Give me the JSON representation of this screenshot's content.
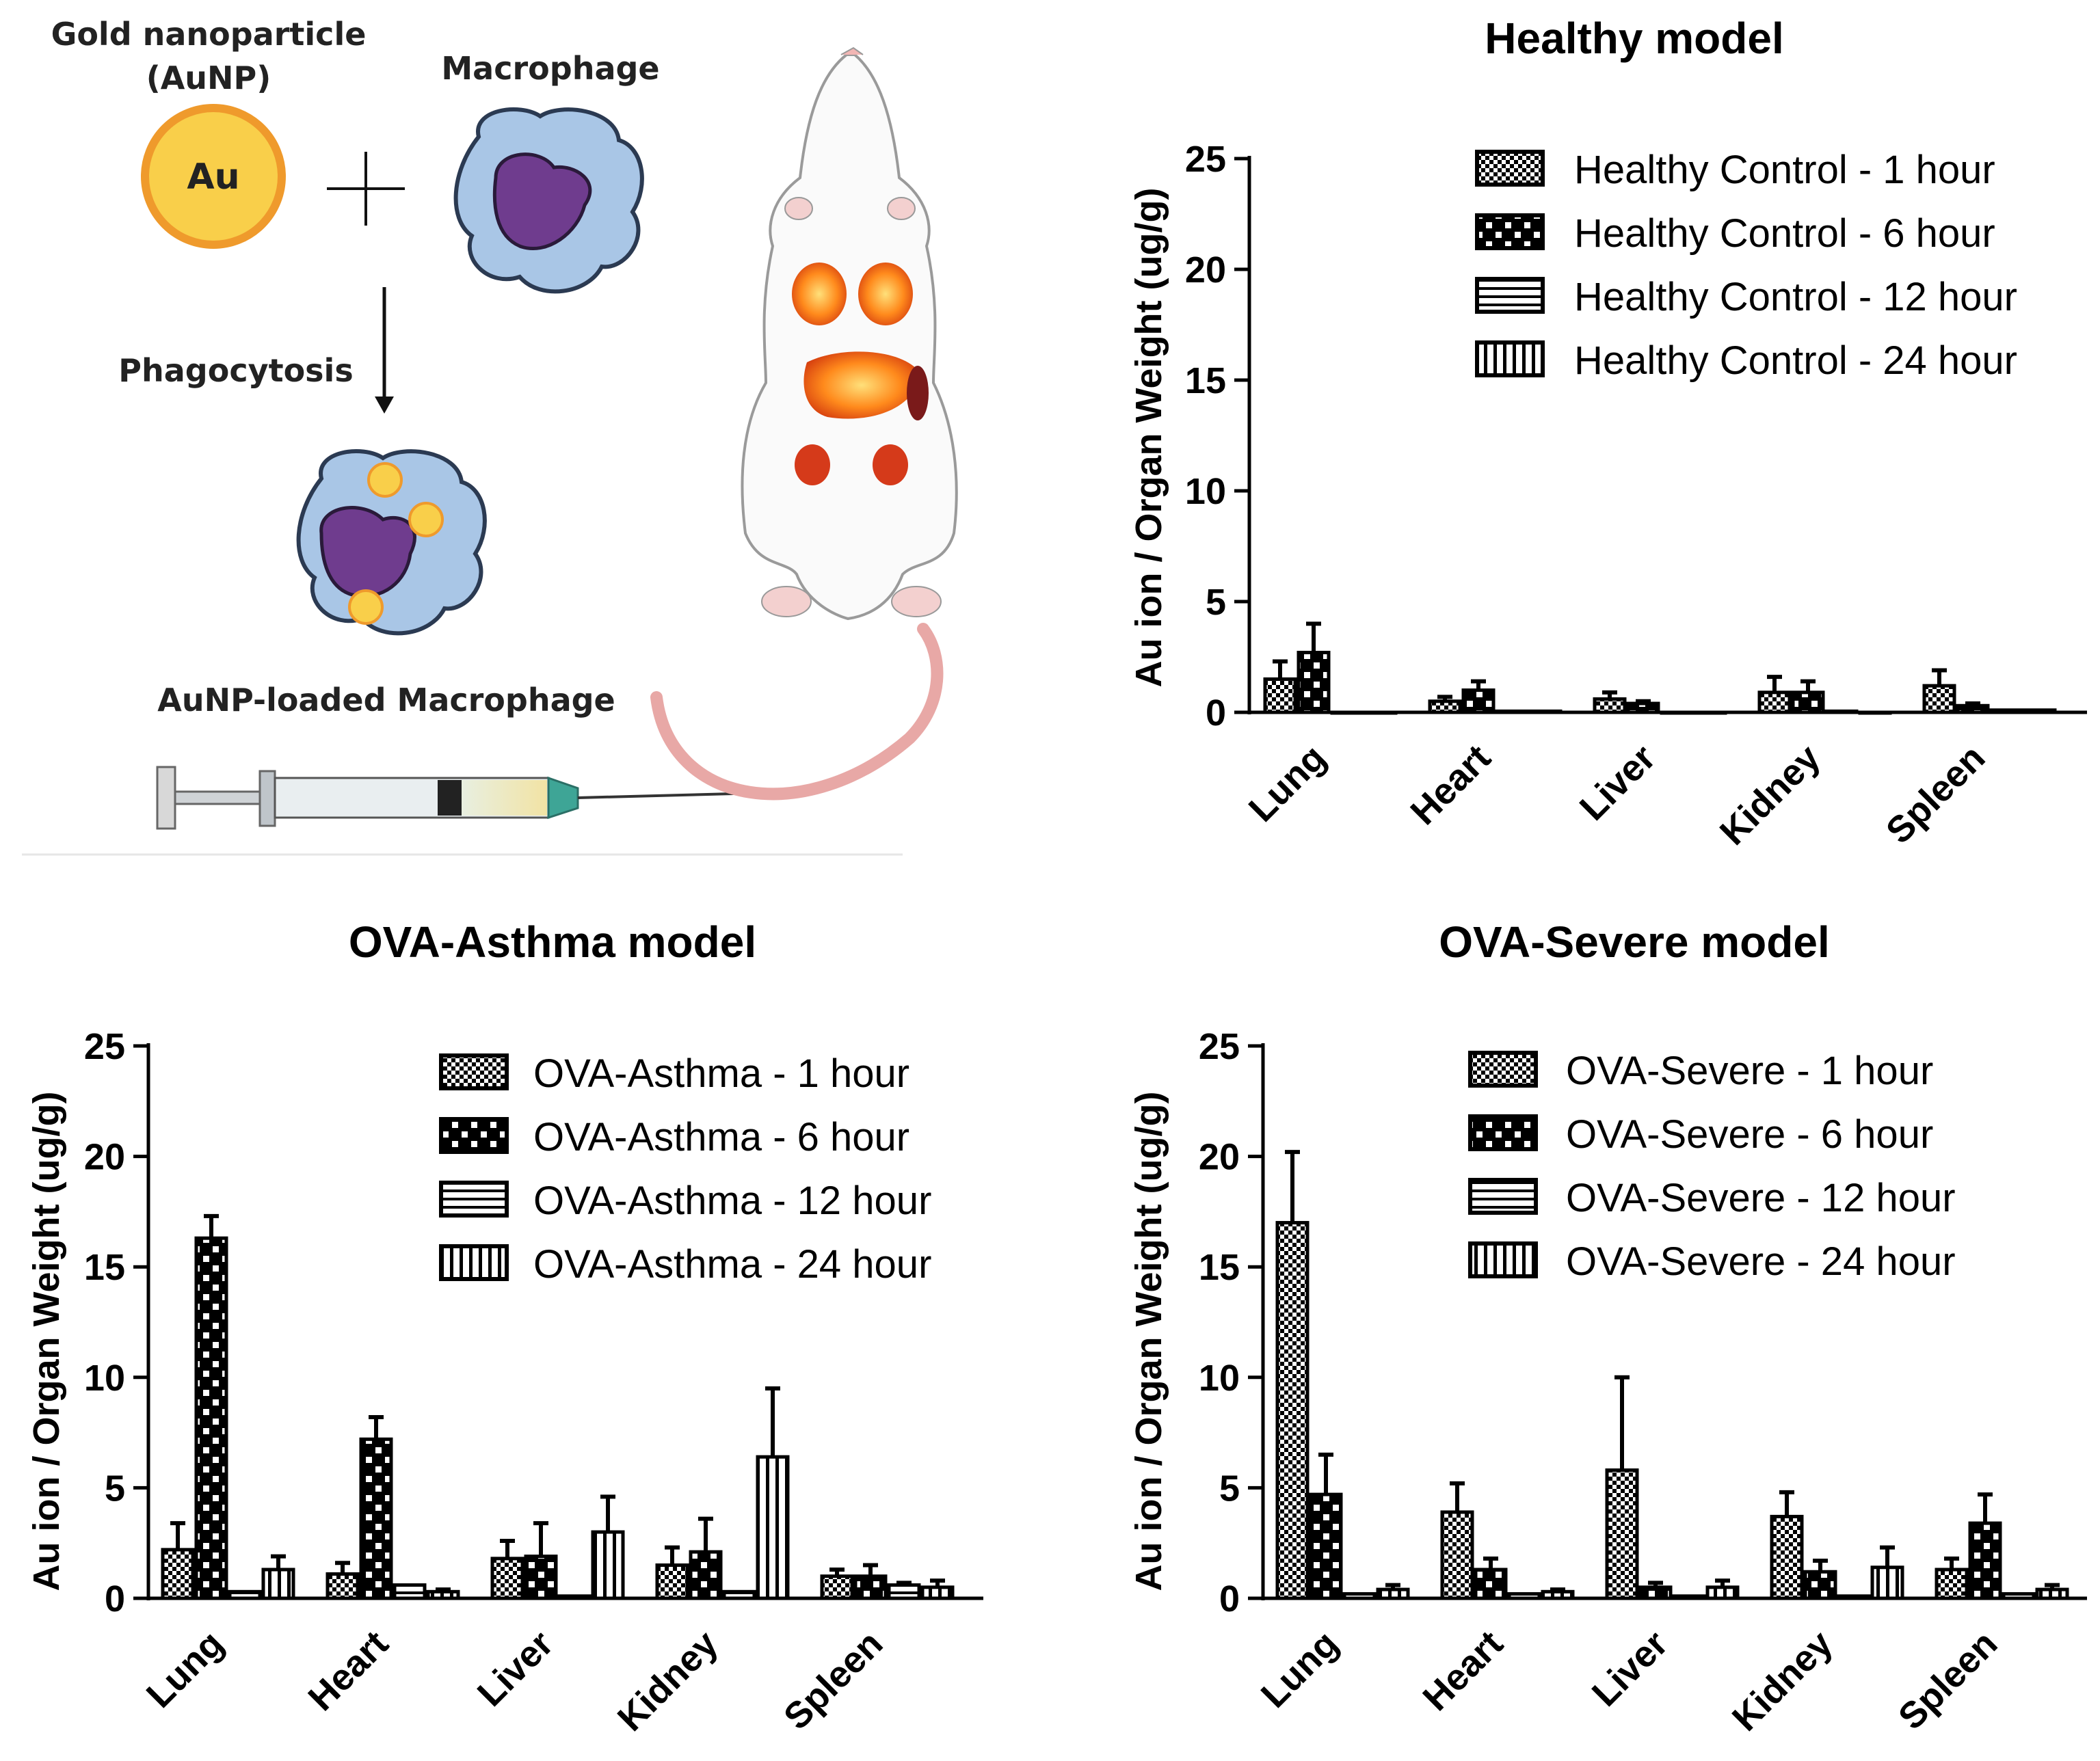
{
  "illustration": {
    "gold_label": "Gold nanoparticle",
    "gold_label_abbrev": "(AuNP)",
    "au_symbol": "Au",
    "macrophage_label": "Macrophage",
    "phagocytosis_label": "Phagocytosis",
    "loaded_label": "AuNP-loaded Macrophage",
    "colors": {
      "gold_fill": "#f9cf4a",
      "gold_ring": "#ef9a2c",
      "cell": "#a9c6e6",
      "nucleus": "#6f3c8e"
    }
  },
  "chart_data": [
    {
      "id": "healthy",
      "type": "bar",
      "title": "Healthy model",
      "xlabel": "",
      "ylabel": "Au ion / Organ Weight (ug/g)",
      "ylim": [
        0,
        25
      ],
      "yticks": [
        0,
        5,
        10,
        15,
        20,
        25
      ],
      "categories": [
        "Lung",
        "Heart",
        "Liver",
        "Kidney",
        "Spleen"
      ],
      "legend_position": "top-right",
      "series": [
        {
          "name": "Healthy Control - 1 hour",
          "pattern": "checker",
          "values": [
            1.5,
            0.5,
            0.6,
            0.9,
            1.2
          ],
          "errors": [
            0.8,
            0.2,
            0.3,
            0.7,
            0.7
          ]
        },
        {
          "name": "Healthy Control - 6 hour",
          "pattern": "dots",
          "values": [
            2.7,
            1.0,
            0.4,
            0.9,
            0.3
          ],
          "errors": [
            1.3,
            0.4,
            0.1,
            0.5,
            0.1
          ]
        },
        {
          "name": "Healthy Control - 12 hour",
          "pattern": "hlines",
          "values": [
            0.0,
            0.05,
            0.0,
            0.05,
            0.1
          ],
          "errors": [
            0,
            0,
            0,
            0,
            0
          ]
        },
        {
          "name": "Healthy Control - 24 hour",
          "pattern": "vlines",
          "values": [
            0.0,
            0.05,
            0.0,
            0.0,
            0.1
          ],
          "errors": [
            0,
            0,
            0,
            0,
            0
          ]
        }
      ]
    },
    {
      "id": "asthma",
      "type": "bar",
      "title": "OVA-Asthma model",
      "xlabel": "",
      "ylabel": "Au ion / Organ Weight (ug/g)",
      "ylim": [
        0,
        25
      ],
      "yticks": [
        0,
        5,
        10,
        15,
        20,
        25
      ],
      "categories": [
        "Lung",
        "Heart",
        "Liver",
        "Kidney",
        "Spleen"
      ],
      "legend_position": "top-right",
      "series": [
        {
          "name": "OVA-Asthma - 1 hour",
          "pattern": "checker",
          "values": [
            2.2,
            1.1,
            1.8,
            1.5,
            1.0
          ],
          "errors": [
            1.2,
            0.5,
            0.8,
            0.8,
            0.3
          ]
        },
        {
          "name": "OVA-Asthma - 6 hour",
          "pattern": "dots",
          "values": [
            16.3,
            7.2,
            1.9,
            2.1,
            1.0
          ],
          "errors": [
            1.0,
            1.0,
            1.5,
            1.5,
            0.5
          ]
        },
        {
          "name": "OVA-Asthma - 12 hour",
          "pattern": "hlines",
          "values": [
            0.3,
            0.6,
            0.1,
            0.3,
            0.6
          ],
          "errors": [
            0,
            0,
            0,
            0,
            0.1
          ]
        },
        {
          "name": "OVA-Asthma - 24 hour",
          "pattern": "vlines",
          "values": [
            1.3,
            0.3,
            3.0,
            6.4,
            0.5
          ],
          "errors": [
            0.6,
            0.1,
            1.6,
            3.1,
            0.3
          ]
        }
      ]
    },
    {
      "id": "severe",
      "type": "bar",
      "title": "OVA-Severe model",
      "xlabel": "",
      "ylabel": "Au ion / Organ Weight (ug/g)",
      "ylim": [
        0,
        25
      ],
      "yticks": [
        0,
        5,
        10,
        15,
        20,
        25
      ],
      "categories": [
        "Lung",
        "Heart",
        "Liver",
        "Kidney",
        "Spleen"
      ],
      "legend_position": "top-right",
      "series": [
        {
          "name": "OVA-Severe - 1 hour",
          "pattern": "checker",
          "values": [
            17.0,
            3.9,
            5.8,
            3.7,
            1.3
          ],
          "errors": [
            3.2,
            1.3,
            4.2,
            1.1,
            0.5
          ]
        },
        {
          "name": "OVA-Severe - 6 hour",
          "pattern": "dots",
          "values": [
            4.7,
            1.3,
            0.5,
            1.2,
            3.4
          ],
          "errors": [
            1.8,
            0.5,
            0.2,
            0.5,
            1.3
          ]
        },
        {
          "name": "OVA-Severe - 12 hour",
          "pattern": "hlines",
          "values": [
            0.2,
            0.2,
            0.1,
            0.1,
            0.2
          ],
          "errors": [
            0,
            0,
            0,
            0,
            0
          ]
        },
        {
          "name": "OVA-Severe - 24 hour",
          "pattern": "vlines",
          "values": [
            0.4,
            0.3,
            0.5,
            1.4,
            0.4
          ],
          "errors": [
            0.2,
            0.1,
            0.3,
            0.9,
            0.2
          ]
        }
      ]
    }
  ]
}
